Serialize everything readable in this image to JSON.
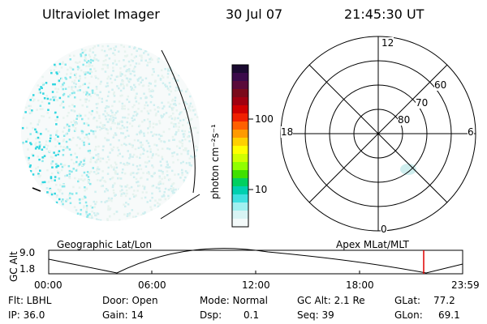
{
  "header": {
    "instrument": "Ultraviolet Imager",
    "date": "30 Jul 07",
    "time": "21:45:30 UT"
  },
  "colorbar": {
    "unit_label": "photon cm⁻²s⁻¹",
    "ticks": [
      "100",
      "10"
    ],
    "colors": [
      "#1a0a30",
      "#3a0a4a",
      "#5a0a3a",
      "#7a0a1a",
      "#a00010",
      "#d00000",
      "#f02000",
      "#ff6000",
      "#ff9a00",
      "#ffd000",
      "#ffff00",
      "#d0ff00",
      "#90ff00",
      "#40e000",
      "#00d060",
      "#00d0b0",
      "#40e0e0",
      "#a0f0f0",
      "#d8f4f4",
      "#f4fafa"
    ]
  },
  "polar_plot": {
    "mlt_labels": {
      "top": "12",
      "left": "18",
      "right": "6",
      "bottom": "0"
    },
    "lat_labels": [
      "60",
      "70",
      "80"
    ]
  },
  "timeline": {
    "left_caption": "Geographic Lat/Lon",
    "right_caption": "Apex MLat/MLT",
    "axis_name": "GC Alt",
    "y_top": "9.0",
    "y_bottom": "1.8",
    "time_ticks": [
      "00:00",
      "06:00",
      "12:00",
      "18:00",
      "23:59"
    ],
    "marker_color": "#e00000"
  },
  "footer": {
    "flt": "Flt: LBHL",
    "ip": "IP: 36.0",
    "door": "Door: Open",
    "gain": "Gain: 14",
    "mode": "Mode: Normal",
    "dsp_label": "Dsp:",
    "dsp_value": "0.1",
    "gcalt": "GC Alt: 2.1 Re",
    "seq": "Seq: 39",
    "glat_label": "GLat:",
    "glat_value": "77.2",
    "glon_label": "GLon:",
    "glon_value": "69.1"
  }
}
